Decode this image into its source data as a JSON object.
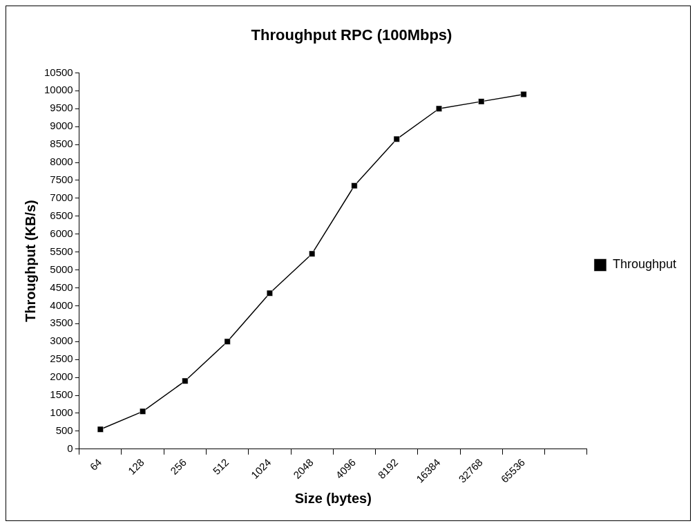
{
  "chart_data": {
    "type": "line",
    "title": "Throughput RPC (100Mbps)",
    "xlabel": "Size (bytes)",
    "ylabel": "Throughput (KB/s)",
    "categories": [
      "64",
      "128",
      "256",
      "512",
      "1024",
      "2048",
      "4096",
      "8192",
      "16384",
      "32768",
      "65536",
      null
    ],
    "series": [
      {
        "name": "Throughput",
        "color": "#000000",
        "values": [
          550,
          1050,
          1900,
          3000,
          4350,
          5450,
          7350,
          8650,
          9500,
          9700,
          9900,
          null
        ]
      }
    ],
    "ylim": [
      0,
      10500
    ],
    "yticks": [
      0,
      500,
      1000,
      1500,
      2000,
      2500,
      3000,
      3500,
      4000,
      4500,
      5000,
      5500,
      6000,
      6500,
      7000,
      7500,
      8000,
      8500,
      9000,
      9500,
      10000,
      10500
    ],
    "grid": false,
    "legend": "right",
    "marker": "square",
    "line_style": "solid"
  }
}
